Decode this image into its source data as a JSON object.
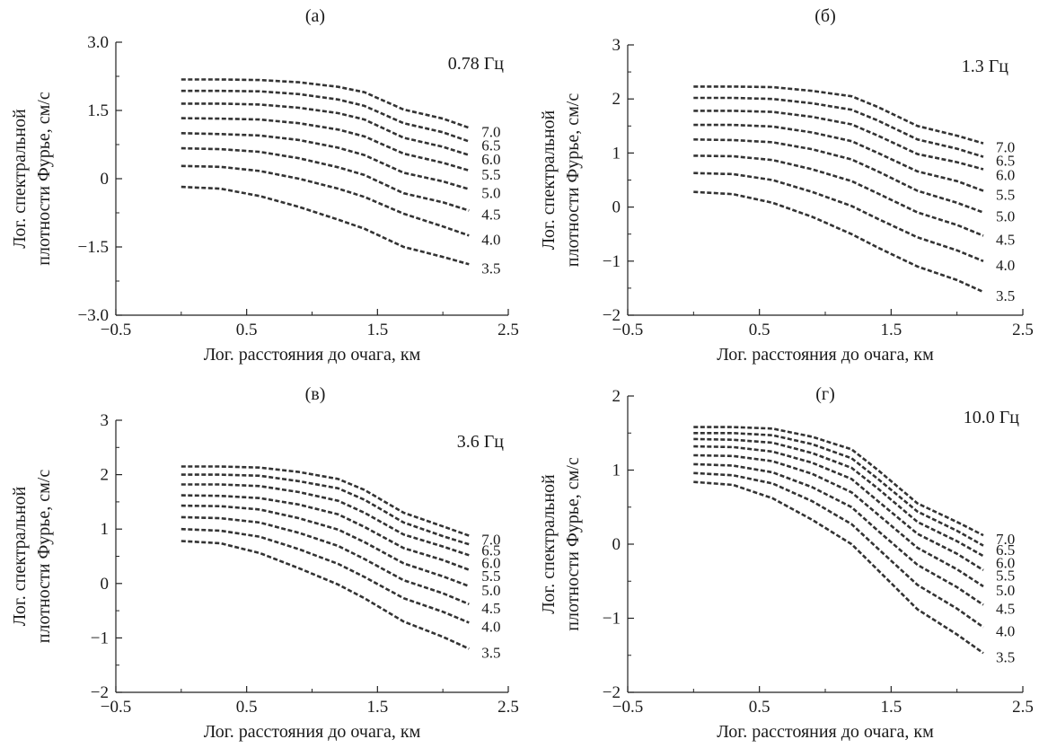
{
  "figure": {
    "xlabel": "Лог. расстояния до очага, км",
    "ylabel_line1": "Лог. спектральной",
    "ylabel_line2": "плотности Фурье, см/с"
  },
  "chart_data": [
    {
      "type": "line",
      "title": "(а)",
      "annotation": "0.78 Гц",
      "xlabel": "Лог. расстояния до очага, км",
      "ylabel": "Лог. спектральной плотности Фурье, см/с",
      "xlim": [
        -0.5,
        2.5
      ],
      "ylim": [
        -3.0,
        3.0
      ],
      "xticks": [
        "−0.5",
        "0.5",
        "1.5",
        "2.5"
      ],
      "yticks": [
        "−3.0",
        "−1.5",
        "0",
        "1.5",
        "3.0"
      ],
      "x": [
        0.0,
        0.3,
        0.6,
        0.9,
        1.2,
        1.4,
        1.7,
        2.0,
        2.2
      ],
      "series": [
        {
          "name": "7.0",
          "values": [
            2.18,
            2.18,
            2.17,
            2.12,
            2.02,
            1.9,
            1.52,
            1.32,
            1.12
          ]
        },
        {
          "name": "6.5",
          "values": [
            1.93,
            1.93,
            1.92,
            1.86,
            1.74,
            1.6,
            1.22,
            1.02,
            0.82
          ]
        },
        {
          "name": "6.0",
          "values": [
            1.65,
            1.65,
            1.63,
            1.56,
            1.44,
            1.3,
            0.9,
            0.7,
            0.52
          ]
        },
        {
          "name": "5.5",
          "values": [
            1.33,
            1.32,
            1.3,
            1.22,
            1.08,
            0.93,
            0.55,
            0.35,
            0.18
          ]
        },
        {
          "name": "5.0",
          "values": [
            1.0,
            0.98,
            0.95,
            0.85,
            0.68,
            0.52,
            0.13,
            -0.06,
            -0.23
          ]
        },
        {
          "name": "4.5",
          "values": [
            0.67,
            0.65,
            0.59,
            0.45,
            0.25,
            0.08,
            -0.32,
            -0.52,
            -0.7
          ]
        },
        {
          "name": "4.0",
          "values": [
            0.28,
            0.26,
            0.17,
            0.0,
            -0.22,
            -0.4,
            -0.77,
            -1.05,
            -1.25
          ]
        },
        {
          "name": "3.5",
          "values": [
            -0.18,
            -0.22,
            -0.38,
            -0.62,
            -0.9,
            -1.1,
            -1.5,
            -1.72,
            -1.88
          ]
        }
      ]
    },
    {
      "type": "line",
      "title": "(б)",
      "annotation": "1.3 Гц",
      "xlabel": "Лог. расстояния до очага, км",
      "ylabel": "Лог. спектральной плотности Фурье, см/с",
      "xlim": [
        -0.5,
        2.5
      ],
      "ylim": [
        -2,
        3
      ],
      "xticks": [
        "−0.5",
        "0.5",
        "1.5",
        "2.5"
      ],
      "yticks": [
        "−2",
        "−1",
        "0",
        "1",
        "2",
        "3"
      ],
      "x": [
        0.0,
        0.3,
        0.6,
        0.9,
        1.2,
        1.4,
        1.7,
        2.0,
        2.2
      ],
      "series": [
        {
          "name": "7.0",
          "values": [
            2.23,
            2.23,
            2.22,
            2.15,
            2.05,
            1.85,
            1.5,
            1.32,
            1.18
          ]
        },
        {
          "name": "6.5",
          "values": [
            2.02,
            2.02,
            2.0,
            1.92,
            1.8,
            1.6,
            1.25,
            1.08,
            0.93
          ]
        },
        {
          "name": "6.0",
          "values": [
            1.78,
            1.78,
            1.76,
            1.67,
            1.53,
            1.32,
            0.98,
            0.83,
            0.7
          ]
        },
        {
          "name": "5.5",
          "values": [
            1.52,
            1.52,
            1.49,
            1.38,
            1.22,
            1.0,
            0.66,
            0.48,
            0.3
          ]
        },
        {
          "name": "5.0",
          "values": [
            1.25,
            1.24,
            1.2,
            1.07,
            0.88,
            0.66,
            0.3,
            0.08,
            -0.1
          ]
        },
        {
          "name": "4.5",
          "values": [
            0.95,
            0.94,
            0.87,
            0.7,
            0.48,
            0.25,
            -0.1,
            -0.33,
            -0.53
          ]
        },
        {
          "name": "4.0",
          "values": [
            0.63,
            0.61,
            0.5,
            0.28,
            0.02,
            -0.22,
            -0.56,
            -0.8,
            -1.0
          ]
        },
        {
          "name": "3.5",
          "values": [
            0.28,
            0.24,
            0.08,
            -0.18,
            -0.5,
            -0.75,
            -1.1,
            -1.35,
            -1.57
          ]
        }
      ]
    },
    {
      "type": "line",
      "title": "(в)",
      "annotation": "3.6 Гц",
      "xlabel": "Лог. расстояния до очага, км",
      "ylabel": "Лог. спектральной плотности Фурье, см/с",
      "xlim": [
        -0.5,
        2.5
      ],
      "ylim": [
        -2,
        3
      ],
      "xticks": [
        "−0.5",
        "0.5",
        "1.5",
        "2.5"
      ],
      "yticks": [
        "−2",
        "−1",
        "0",
        "1",
        "2",
        "3"
      ],
      "x": [
        0.0,
        0.3,
        0.6,
        0.9,
        1.2,
        1.4,
        1.7,
        2.0,
        2.2
      ],
      "series": [
        {
          "name": "7.0",
          "values": [
            2.15,
            2.15,
            2.13,
            2.05,
            1.92,
            1.72,
            1.3,
            1.05,
            0.88
          ]
        },
        {
          "name": "6.5",
          "values": [
            2.0,
            2.0,
            1.98,
            1.88,
            1.75,
            1.54,
            1.12,
            0.87,
            0.72
          ]
        },
        {
          "name": "6.0",
          "values": [
            1.82,
            1.82,
            1.79,
            1.68,
            1.52,
            1.3,
            0.9,
            0.68,
            0.52
          ]
        },
        {
          "name": "5.5",
          "values": [
            1.62,
            1.61,
            1.57,
            1.45,
            1.27,
            1.04,
            0.65,
            0.43,
            0.25
          ]
        },
        {
          "name": "5.0",
          "values": [
            1.43,
            1.42,
            1.36,
            1.2,
            0.99,
            0.76,
            0.37,
            0.13,
            -0.05
          ]
        },
        {
          "name": "4.5",
          "values": [
            1.22,
            1.2,
            1.12,
            0.93,
            0.69,
            0.45,
            0.06,
            -0.18,
            -0.38
          ]
        },
        {
          "name": "4.0",
          "values": [
            1.0,
            0.97,
            0.86,
            0.63,
            0.36,
            0.12,
            -0.27,
            -0.52,
            -0.72
          ]
        },
        {
          "name": "3.5",
          "values": [
            0.78,
            0.74,
            0.56,
            0.28,
            -0.02,
            -0.27,
            -0.7,
            -0.98,
            -1.2
          ]
        }
      ]
    },
    {
      "type": "line",
      "title": "(г)",
      "annotation": "10.0 Гц",
      "xlabel": "Лог. расстояния до очага, км",
      "ylabel": "Лог. спектральной плотности Фурье, см/с",
      "xlim": [
        -0.5,
        2.5
      ],
      "ylim": [
        -2,
        2
      ],
      "xticks": [
        "−0.5",
        "0.5",
        "1.5",
        "2.5"
      ],
      "yticks": [
        "−2",
        "−1",
        "0",
        "1",
        "2"
      ],
      "x": [
        0.0,
        0.3,
        0.6,
        0.9,
        1.2,
        1.4,
        1.7,
        2.0,
        2.2
      ],
      "series": [
        {
          "name": "7.0",
          "values": [
            1.58,
            1.58,
            1.56,
            1.45,
            1.28,
            1.0,
            0.55,
            0.3,
            0.12
          ]
        },
        {
          "name": "6.5",
          "values": [
            1.5,
            1.5,
            1.47,
            1.35,
            1.16,
            0.88,
            0.44,
            0.18,
            -0.02
          ]
        },
        {
          "name": "6.0",
          "values": [
            1.42,
            1.41,
            1.37,
            1.23,
            1.03,
            0.75,
            0.3,
            0.04,
            -0.16
          ]
        },
        {
          "name": "5.5",
          "values": [
            1.32,
            1.31,
            1.25,
            1.1,
            0.88,
            0.58,
            0.14,
            -0.13,
            -0.35
          ]
        },
        {
          "name": "5.0",
          "values": [
            1.2,
            1.19,
            1.12,
            0.95,
            0.7,
            0.4,
            -0.05,
            -0.34,
            -0.57
          ]
        },
        {
          "name": "4.5",
          "values": [
            1.08,
            1.06,
            0.97,
            0.77,
            0.5,
            0.18,
            -0.28,
            -0.58,
            -0.82
          ]
        },
        {
          "name": "4.0",
          "values": [
            0.96,
            0.93,
            0.82,
            0.58,
            0.27,
            -0.06,
            -0.55,
            -0.87,
            -1.12
          ]
        },
        {
          "name": "3.5",
          "values": [
            0.84,
            0.8,
            0.62,
            0.33,
            0.0,
            -0.35,
            -0.88,
            -1.22,
            -1.47
          ]
        }
      ]
    }
  ]
}
